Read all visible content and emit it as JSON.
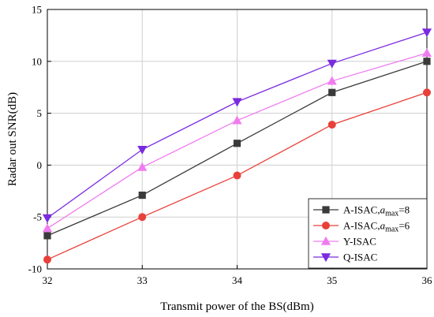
{
  "chart_data": {
    "type": "line",
    "title": "",
    "xlabel": "Transmit power of the BS(dBm)",
    "ylabel": "Radar out SNR(dB)",
    "xlim": [
      32,
      36
    ],
    "ylim": [
      -10,
      15
    ],
    "x_ticks": [
      "32",
      "33",
      "34",
      "35",
      "36"
    ],
    "y_ticks": [
      "-10",
      "-5",
      "0",
      "5",
      "10",
      "15"
    ],
    "grid": true,
    "legend_position": "bottom-right",
    "x": [
      32,
      33,
      34,
      35,
      36
    ],
    "series": [
      {
        "name": "A-ISAC,a_max=8",
        "legend_prefix": "A-ISAC,",
        "legend_italic": "a",
        "legend_sub": "max",
        "legend_suffix": "=8",
        "color": "#3a3a3a",
        "marker": "square",
        "values": [
          -6.8,
          -2.9,
          2.1,
          7.0,
          10.0
        ]
      },
      {
        "name": "A-ISAC,a_max=6",
        "legend_prefix": "A-ISAC,",
        "legend_italic": "a",
        "legend_sub": "max",
        "legend_suffix": "=6",
        "color": "#e8413a",
        "marker": "circle",
        "values": [
          -9.1,
          -5.0,
          -1.0,
          3.9,
          7.0
        ]
      },
      {
        "name": "Y-ISAC",
        "legend_prefix": "Y-ISAC",
        "legend_italic": "",
        "legend_sub": "",
        "legend_suffix": "",
        "color": "#f07cf0",
        "marker": "triangle-up",
        "values": [
          -6.1,
          -0.2,
          4.3,
          8.1,
          10.8
        ]
      },
      {
        "name": "Q-ISAC",
        "legend_prefix": "Q-ISAC",
        "legend_italic": "",
        "legend_sub": "",
        "legend_suffix": "",
        "color": "#7a2be0",
        "marker": "triangle-down",
        "values": [
          -5.1,
          1.5,
          6.1,
          9.8,
          12.8
        ]
      }
    ]
  }
}
